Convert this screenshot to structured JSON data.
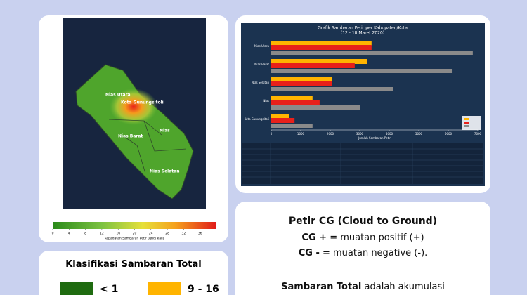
{
  "map": {
    "labels": [
      "Nias Utara",
      "Kota Gunungsitoli",
      "Nias Barat",
      "Nias",
      "Nias Selatan"
    ],
    "colorbar": {
      "lim": [
        0,
        40
      ],
      "ticks": [
        0,
        4,
        8,
        12,
        16,
        20,
        24,
        28,
        32,
        36
      ],
      "label": "Kepadatan Sambaran Petir (grid/ kali)"
    }
  },
  "chart_data": {
    "type": "hbar",
    "title": "Grafik Sambaran Petir per Kabupaten/Kota",
    "subtitle": "(12 - 18 Maret 2020)",
    "categories": [
      "Nias Utara",
      "Nias Barat",
      "Nias Selatan",
      "Nias",
      "Kota Gunungsitoli"
    ],
    "series": [
      {
        "color": "#ffb400",
        "values": [
          3400,
          3260,
          2070,
          1400,
          600
        ]
      },
      {
        "color": "#e8201a",
        "values": [
          3400,
          2830,
          2070,
          1640,
          790
        ]
      },
      {
        "color": "#8a8a8a",
        "values": [
          6830,
          6120,
          4140,
          3020,
          1400
        ]
      }
    ],
    "xlim": [
      0,
      7000
    ],
    "xticks": [
      0,
      1000,
      2000,
      3000,
      4000,
      5000,
      6000,
      7000
    ],
    "xlabel": "Jumlah Sambaran Petir"
  },
  "notes": {
    "heading": "Petir CG (Cloud to Ground)",
    "lines": [
      {
        "term": "CG +",
        "text": " = muatan positif (+)"
      },
      {
        "term": "CG -",
        "text": " = muatan negative (-)."
      }
    ],
    "total": {
      "term": "Sambaran Total",
      "text": " adalah akumulasi"
    }
  },
  "classification": {
    "title": "Klasifikasi Sambaran Total",
    "items": [
      {
        "label": "< 1",
        "color": "#1f6b10"
      },
      {
        "label": "9 - 16",
        "color": "#ffb400"
      }
    ]
  }
}
